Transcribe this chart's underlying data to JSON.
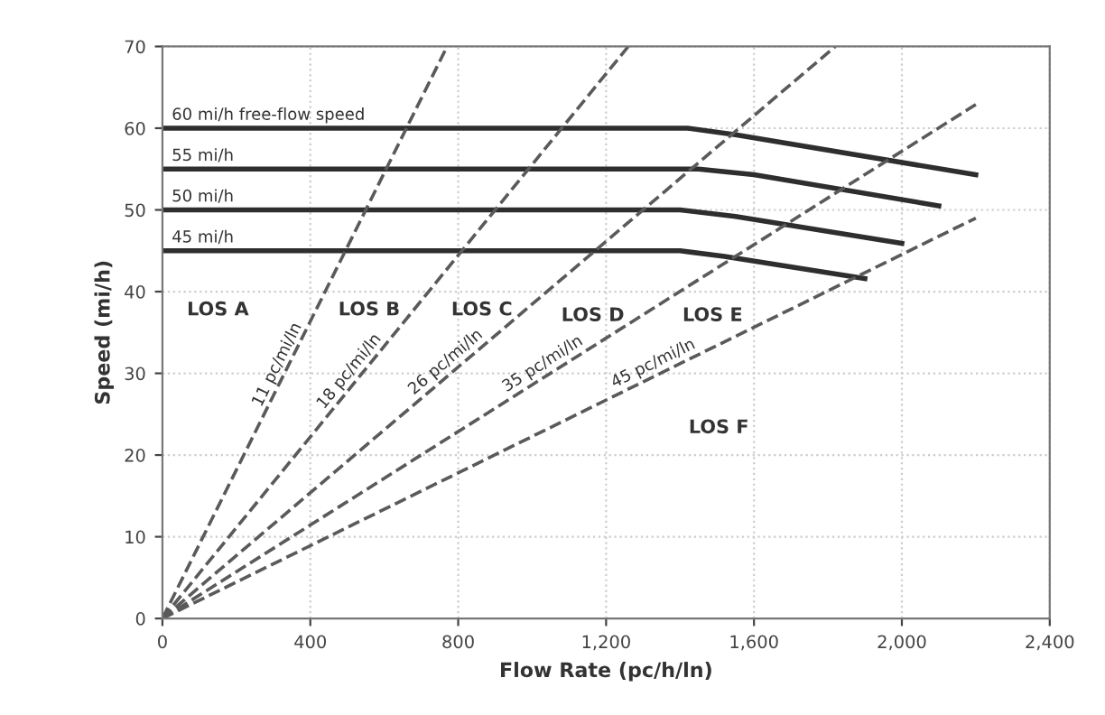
{
  "chart_data": {
    "type": "line",
    "xlabel": "Flow Rate (pc/h/ln)",
    "ylabel": "Speed (mi/h)",
    "xlim": [
      0,
      2400
    ],
    "ylim": [
      0,
      70
    ],
    "xticks": [
      0,
      400,
      800,
      {
        "value": 1200,
        "label": "1,200"
      },
      {
        "value": 1600,
        "label": "1,600"
      },
      {
        "value": 2000,
        "label": "2,000"
      },
      {
        "value": 2400,
        "label": "2,400"
      }
    ],
    "yticks": [
      0,
      10,
      20,
      30,
      40,
      50,
      60,
      70
    ],
    "grid": true,
    "series": [
      {
        "color": "#2e2e2e",
        "line_style": "solid",
        "x": [
          0,
          1420,
          1550,
          2200
        ],
        "values": [
          60,
          60,
          59.2,
          54.3
        ]
      },
      {
        "color": "#2e2e2e",
        "line_style": "solid",
        "x": [
          0,
          1450,
          1600,
          2100
        ],
        "values": [
          55,
          55,
          54.3,
          50.5
        ]
      },
      {
        "color": "#2e2e2e",
        "line_style": "solid",
        "x": [
          0,
          1400,
          1550,
          2000
        ],
        "values": [
          50,
          50,
          49.2,
          45.9
        ]
      },
      {
        "color": "#2e2e2e",
        "line_style": "solid",
        "x": [
          0,
          1400,
          1520,
          1900
        ],
        "values": [
          45,
          45,
          44.3,
          41.6
        ]
      },
      {
        "color": "#5a5a5a",
        "line_style": "dashed",
        "x": [
          0,
          770
        ],
        "values": [
          0,
          70
        ]
      },
      {
        "color": "#5a5a5a",
        "line_style": "dashed",
        "x": [
          0,
          1260
        ],
        "values": [
          0,
          70
        ]
      },
      {
        "color": "#5a5a5a",
        "line_style": "dashed",
        "x": [
          0,
          1820
        ],
        "values": [
          0,
          70
        ]
      },
      {
        "color": "#5a5a5a",
        "line_style": "dashed",
        "x": [
          0,
          2200
        ],
        "values": [
          0,
          62.9
        ]
      },
      {
        "color": "#5a5a5a",
        "line_style": "dashed",
        "x": [
          0,
          2200
        ],
        "values": [
          0,
          49
        ]
      }
    ],
    "annotations": [
      {
        "text": "60 mi/h free-flow speed",
        "x": 25,
        "y": 60
      },
      {
        "text": "55 mi/h",
        "x": 25,
        "y": 55
      },
      {
        "text": "50 mi/h",
        "x": 25,
        "y": 50
      },
      {
        "text": "45 mi/h",
        "x": 25,
        "y": 45
      },
      {
        "text": "11 pc/mi/ln",
        "x": 330,
        "y": 30
      },
      {
        "text": "18 pc/mi/ln",
        "x": 522,
        "y": 29
      },
      {
        "text": "26 pc/mi/ln",
        "x": 780,
        "y": 30
      },
      {
        "text": "35 pc/mi/ln",
        "x": 1040,
        "y": 29.7
      },
      {
        "text": "45 pc/mi/ln",
        "x": 1337,
        "y": 29.7
      },
      "LOS A",
      "LOS B",
      "LOS C",
      "LOS D",
      "LOS E",
      "LOS F"
    ]
  }
}
